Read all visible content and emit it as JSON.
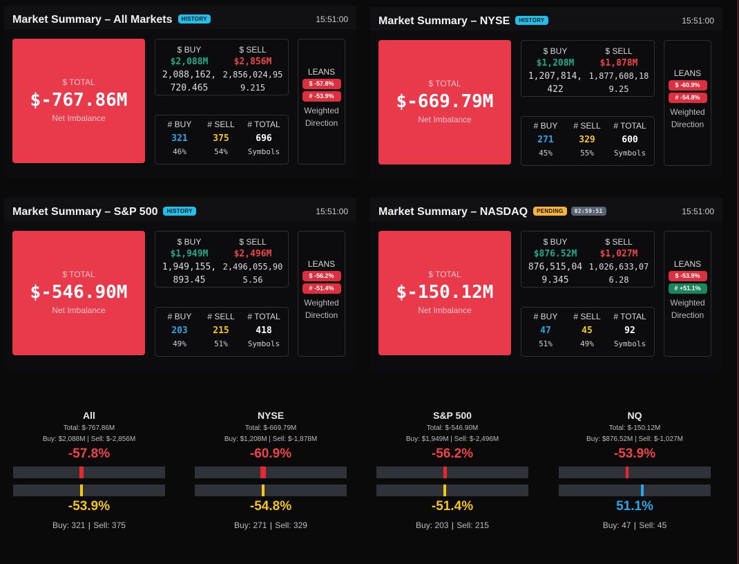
{
  "panels": [
    {
      "title": "Market Summary – All Markets",
      "badge": "HISTORY",
      "time": "15:51:00",
      "total_label": "$ TOTAL",
      "total_value": "$-767.86M",
      "total_caption": "Net Imbalance",
      "buy_label": "$ BUY",
      "sell_label": "$ SELL",
      "buy_amount": "$2,088M",
      "sell_amount": "$2,856M",
      "buy_raw": "2,088,162,720.465",
      "sell_raw": "2,856,024,959.215",
      "count_buy_label": "# BUY",
      "count_sell_label": "# SELL",
      "count_total_label": "# TOTAL",
      "count_buy": "321",
      "count_sell": "375",
      "count_total": "696",
      "pct_buy": "46%",
      "pct_sell": "54%",
      "symbols": "Symbols",
      "leans_title": "LEANS",
      "lean_dollar": "$ -57.8%",
      "lean_count": "# -53.9%",
      "weighted": "Weighted Direction"
    },
    {
      "title": "Market Summary – NYSE",
      "badge": "HISTORY",
      "time": "15:51:00",
      "total_label": "$ TOTAL",
      "total_value": "$-669.79M",
      "total_caption": "Net Imbalance",
      "buy_label": "$ BUY",
      "sell_label": "$ SELL",
      "buy_amount": "$1,208M",
      "sell_amount": "$1,878M",
      "buy_raw": "1,207,814,422",
      "sell_raw": "1,877,608,189.25",
      "count_buy_label": "# BUY",
      "count_sell_label": "# SELL",
      "count_total_label": "# TOTAL",
      "count_buy": "271",
      "count_sell": "329",
      "count_total": "600",
      "pct_buy": "45%",
      "pct_sell": "55%",
      "symbols": "Symbols",
      "leans_title": "LEANS",
      "lean_dollar": "$ -60.9%",
      "lean_count": "# -54.8%",
      "weighted": "Weighted Direction"
    },
    {
      "title": "Market Summary – S&P 500",
      "badge": "HISTORY",
      "time": "15:51:00",
      "total_label": "$ TOTAL",
      "total_value": "$-546.90M",
      "total_caption": "Net Imbalance",
      "buy_label": "$ BUY",
      "sell_label": "$ SELL",
      "buy_amount": "$1,949M",
      "sell_amount": "$2,496M",
      "buy_raw": "1,949,155,893.45",
      "sell_raw": "2,496,055,905.56",
      "count_buy_label": "# BUY",
      "count_sell_label": "# SELL",
      "count_total_label": "# TOTAL",
      "count_buy": "203",
      "count_sell": "215",
      "count_total": "418",
      "pct_buy": "49%",
      "pct_sell": "51%",
      "symbols": "Symbols",
      "leans_title": "LEANS",
      "lean_dollar": "$ -56.2%",
      "lean_count": "# -51.4%",
      "weighted": "Weighted Direction"
    },
    {
      "title": "Market Summary – NASDAQ",
      "badge": "PENDING",
      "timer": "02:59:51",
      "time": "15:51:00",
      "total_label": "$ TOTAL",
      "total_value": "$-150.12M",
      "total_caption": "Net Imbalance",
      "buy_label": "$ BUY",
      "sell_label": "$ SELL",
      "buy_amount": "$876.52M",
      "sell_amount": "$1,027M",
      "buy_raw": "876,515,049.345",
      "sell_raw": "1,026,633,076.28",
      "count_buy_label": "# BUY",
      "count_sell_label": "# SELL",
      "count_total_label": "# TOTAL",
      "count_buy": "47",
      "count_sell": "45",
      "count_total": "92",
      "pct_buy": "51%",
      "pct_sell": "49%",
      "symbols": "Symbols",
      "leans_title": "LEANS",
      "lean_dollar": "$ -53.9%",
      "lean_count": "# +51.1%",
      "weighted": "Weighted Direction"
    }
  ],
  "summaries": [
    {
      "name": "All",
      "total": "Total: $-767.86M",
      "buy_sell": "Buy: $2,088M | Sell: $-2,856M",
      "dollar_lean": "-57.8%",
      "dollar_lean_value": -57.8,
      "count_lean": "-53.9%",
      "count_lean_value": -53.9,
      "foot_buy": "Buy: 321",
      "foot_sell": "Sell: 375"
    },
    {
      "name": "NYSE",
      "total": "Total: $-669.79M",
      "buy_sell": "Buy: $1,208M | Sell: $-1,878M",
      "dollar_lean": "-60.9%",
      "dollar_lean_value": -60.9,
      "count_lean": "-54.8%",
      "count_lean_value": -54.8,
      "foot_buy": "Buy: 271",
      "foot_sell": "Sell: 329"
    },
    {
      "name": "S&P 500",
      "total": "Total: $-546.90M",
      "buy_sell": "Buy: $1,949M | Sell: $-2,496M",
      "dollar_lean": "-56.2%",
      "dollar_lean_value": -56.2,
      "count_lean": "-51.4%",
      "count_lean_value": -51.4,
      "foot_buy": "Buy: 203",
      "foot_sell": "Sell: 215"
    },
    {
      "name": "NQ",
      "total": "Total: $-150.12M",
      "buy_sell": "Buy: $876.52M | Sell: $-1,027M",
      "dollar_lean": "-53.9%",
      "dollar_lean_value": -53.9,
      "count_lean": "51.1%",
      "count_lean_value": 51.1,
      "foot_buy": "Buy: 47",
      "foot_sell": "Sell: 45"
    }
  ],
  "colors": {
    "panel_total_bg": "#e83a4b",
    "buy_green": "#1aab8a",
    "sell_red": "#ef4444",
    "count_blue": "#2aa6e6",
    "count_yellow": "#f5c518",
    "history_badge": "#22c0e8",
    "pending_badge": "#f6b53a"
  }
}
